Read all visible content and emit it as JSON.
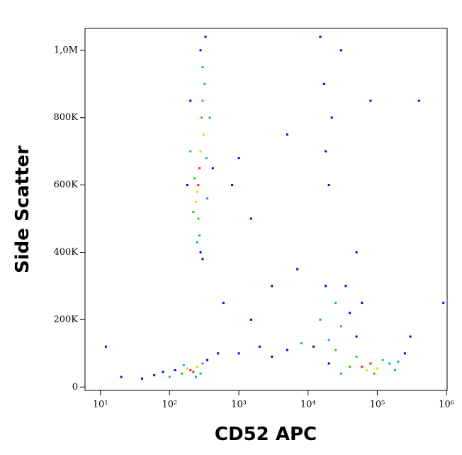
{
  "chart_data": {
    "type": "scatter",
    "xlabel": "CD52 APC",
    "ylabel": "Side Scatter",
    "xscale": "log",
    "xlim": [
      6,
      1020000
    ],
    "ylim": [
      -10000,
      1065000
    ],
    "xticks": [
      {
        "value": 10,
        "label": "10¹"
      },
      {
        "value": 100,
        "label": "10²"
      },
      {
        "value": 1000,
        "label": "10³"
      },
      {
        "value": 10000,
        "label": "10⁴"
      },
      {
        "value": 100000,
        "label": "10⁵"
      },
      {
        "value": 1000000,
        "label": "10⁶"
      }
    ],
    "yticks": [
      0,
      {
        "value": 200000,
        "label": "200K"
      },
      {
        "value": 400000,
        "label": "400K"
      },
      {
        "value": 600000,
        "label": "600K"
      },
      {
        "value": 800000,
        "label": "800K"
      },
      {
        "value": 1000000,
        "label": "1,0M"
      }
    ],
    "x": [
      120,
      150,
      180,
      200,
      220,
      250,
      280,
      300,
      100,
      80,
      60,
      40,
      350,
      500,
      160,
      240,
      280,
      300,
      320,
      300,
      290,
      310,
      280,
      270,
      260,
      250,
      240,
      260,
      270,
      280,
      230,
      340,
      200,
      380,
      220,
      350,
      180,
      420,
      300,
      250,
      330,
      200,
      60000,
      80000,
      100000,
      70000,
      120000,
      40000,
      150000,
      200000,
      30000,
      20000,
      50000,
      90000,
      250000,
      300000,
      180000,
      15000,
      25000,
      30000,
      20000,
      40000,
      18000,
      35000,
      50000,
      12000,
      60000,
      25000,
      1000,
      2000,
      3000,
      5000,
      8000,
      1500,
      600,
      3000,
      7000,
      1500,
      20000,
      18000,
      22000,
      17000,
      15000,
      30000,
      5000,
      50000,
      80000,
      400000,
      900000,
      800,
      1000,
      20,
      12
    ],
    "values": [
      50000,
      40000,
      55000,
      50000,
      45000,
      60000,
      40000,
      70000,
      30000,
      45000,
      35000,
      25000,
      80000,
      100000,
      65000,
      30000,
      1000000,
      950000,
      900000,
      850000,
      800000,
      750000,
      700000,
      650000,
      600000,
      580000,
      550000,
      500000,
      450000,
      400000,
      620000,
      680000,
      700000,
      800000,
      520000,
      560000,
      600000,
      650000,
      380000,
      430000,
      1040000,
      850000,
      60000,
      70000,
      55000,
      50000,
      80000,
      60000,
      70000,
      75000,
      40000,
      70000,
      90000,
      40000,
      100000,
      150000,
      50000,
      200000,
      250000,
      180000,
      140000,
      220000,
      300000,
      300000,
      150000,
      120000,
      250000,
      110000,
      100000,
      120000,
      90000,
      110000,
      130000,
      200000,
      250000,
      300000,
      350000,
      500000,
      600000,
      700000,
      800000,
      900000,
      1040000,
      1000000,
      750000,
      400000,
      850000,
      850000,
      250000,
      600000,
      680000,
      30000,
      120000
    ],
    "point_colors": [
      "#0000ff",
      "#22cc22",
      "#e0e000",
      "#ff2020",
      "#ff2020",
      "#e0e000",
      "#22cc22",
      "#00aaff",
      "#00aaff",
      "#0000ff",
      "#0000ff",
      "#0000ff",
      "#0000ff",
      "#0000ff",
      "#00aaff",
      "#00aaff",
      "#0000ff",
      "#00aaff",
      "#00aaff",
      "#22cc22",
      "#22cc22",
      "#e0e000",
      "#e0e000",
      "#ff2020",
      "#ff2020",
      "#e0e000",
      "#e0e000",
      "#22cc22",
      "#00aaff",
      "#0000ff",
      "#22cc22",
      "#22cc22",
      "#00aaff",
      "#00aaff",
      "#22cc22",
      "#00aaff",
      "#0000ff",
      "#0000ff",
      "#0000ff",
      "#00aaff",
      "#0000ff",
      "#0000ff",
      "#ff2020",
      "#ff2020",
      "#e0e000",
      "#e0e000",
      "#22cc22",
      "#22cc22",
      "#00aaff",
      "#00aaff",
      "#00aaff",
      "#0000ff",
      "#22cc22",
      "#22cc22",
      "#0000ff",
      "#0000ff",
      "#00aaff",
      "#00aaff",
      "#00aaff",
      "#22cc22",
      "#00aaff",
      "#0000ff",
      "#0000ff",
      "#0000ff",
      "#0000ff",
      "#0000ff",
      "#0000ff",
      "#22cc22",
      "#0000ff",
      "#0000ff",
      "#0000ff",
      "#0000ff",
      "#00aaff",
      "#0000ff",
      "#0000ff",
      "#0000ff",
      "#0000ff",
      "#0000ff",
      "#0000ff",
      "#0000ff",
      "#0000ff",
      "#0000ff",
      "#0000ff",
      "#0000ff",
      "#0000ff",
      "#0000ff",
      "#0000ff",
      "#0000ff",
      "#0000ff",
      "#0000ff",
      "#0000ff",
      "#0000ff",
      "#0000ff"
    ]
  }
}
